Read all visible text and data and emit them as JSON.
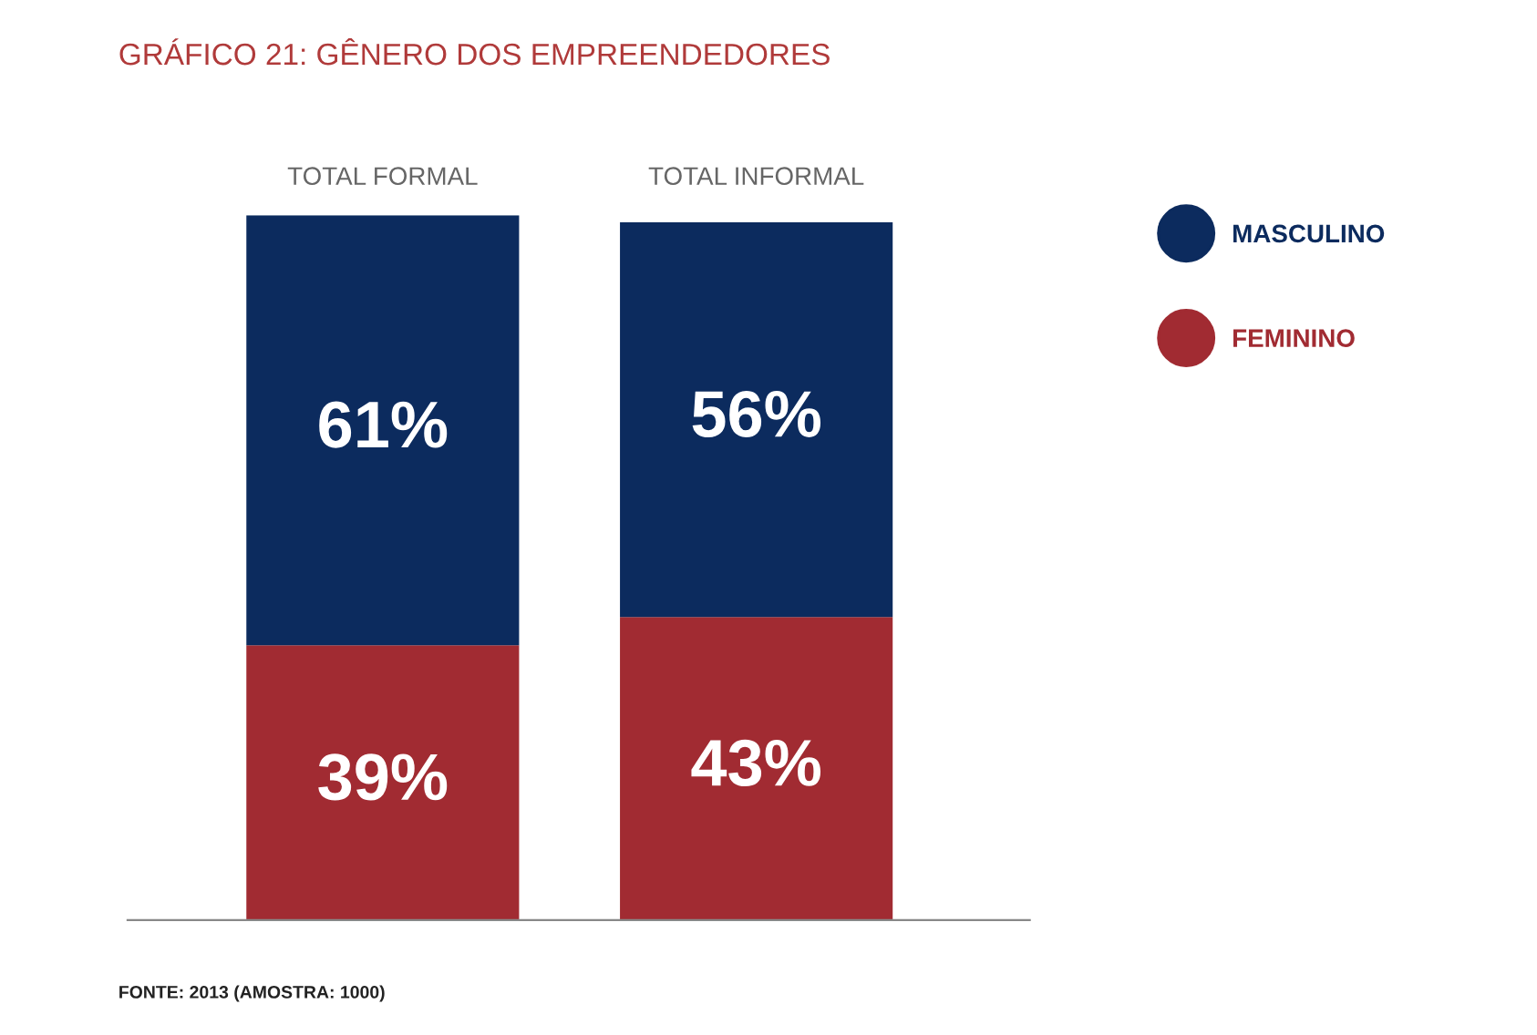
{
  "chart_data": {
    "type": "bar",
    "stacked": true,
    "title": "GRÁFICO 21: GÊNERO DOS EMPREENDEDORES",
    "categories": [
      "TOTAL FORMAL",
      "TOTAL INFORMAL"
    ],
    "series": [
      {
        "name": "FEMININO",
        "color": "#a12b32",
        "values": [
          39,
          43
        ],
        "value_labels": [
          "39%",
          "43%"
        ]
      },
      {
        "name": "MASCULINO",
        "color": "#0c2b5e",
        "values": [
          61,
          56
        ],
        "value_labels": [
          "61%",
          "56%"
        ]
      }
    ],
    "legend": "right",
    "annotations": [
      "FONTE: 2013 (AMOSTRA: 1000)"
    ]
  }
}
